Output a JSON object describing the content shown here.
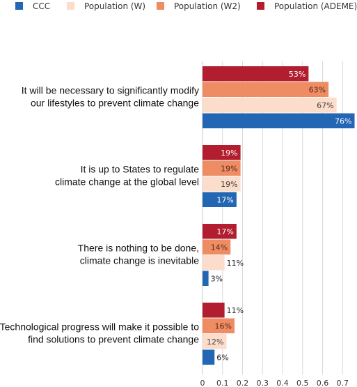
{
  "chart_data": {
    "type": "bar",
    "orientation": "horizontal",
    "categories": [
      [
        "It will be necessary to significantly modify",
        "our lifestyles to prevent climate change"
      ],
      [
        "It is up to States to regulate",
        "climate change at the global level"
      ],
      [
        "There is nothing to be done,",
        "climate change is inevitable"
      ],
      [
        "Technological progress will make it possible to",
        "find solutions to prevent climate change"
      ]
    ],
    "series": [
      {
        "name": "Population (ADEME)",
        "color": "#B21E30",
        "values": [
          0.53,
          0.19,
          0.17,
          0.11
        ],
        "labels": [
          "53%",
          "19%",
          "17%",
          "11%"
        ],
        "label_color": "#ffffff"
      },
      {
        "name": "Population (W2)",
        "color": "#EE8C64",
        "values": [
          0.63,
          0.19,
          0.14,
          0.16
        ],
        "labels": [
          "63%",
          "19%",
          "14%",
          "16%"
        ],
        "label_color": "#5a2a1a"
      },
      {
        "name": "Population (W)",
        "color": "#FCDCCB",
        "values": [
          0.67,
          0.19,
          0.11,
          0.12
        ],
        "labels": [
          "67%",
          "19%",
          "11%",
          "12%"
        ],
        "label_color": "#444444"
      },
      {
        "name": "CCC",
        "color": "#2366B3",
        "values": [
          0.76,
          0.17,
          0.03,
          0.06
        ],
        "labels": [
          "76%",
          "17%",
          "3%",
          "6%"
        ],
        "label_color": "#ffffff"
      }
    ],
    "legend": [
      {
        "name": "CCC",
        "color": "#2366B3"
      },
      {
        "name": "Population (W)",
        "color": "#FCDCCB"
      },
      {
        "name": "Population (W2)",
        "color": "#EE8C64"
      },
      {
        "name": "Population (ADEME)",
        "color": "#B21E30"
      }
    ],
    "xlim": [
      0,
      0.75
    ],
    "xticks": [
      "0",
      "0.1",
      "0.2",
      "0.3",
      "0.4",
      "0.5",
      "0.6",
      "0.7"
    ],
    "grid": true,
    "legend_position": "top"
  }
}
